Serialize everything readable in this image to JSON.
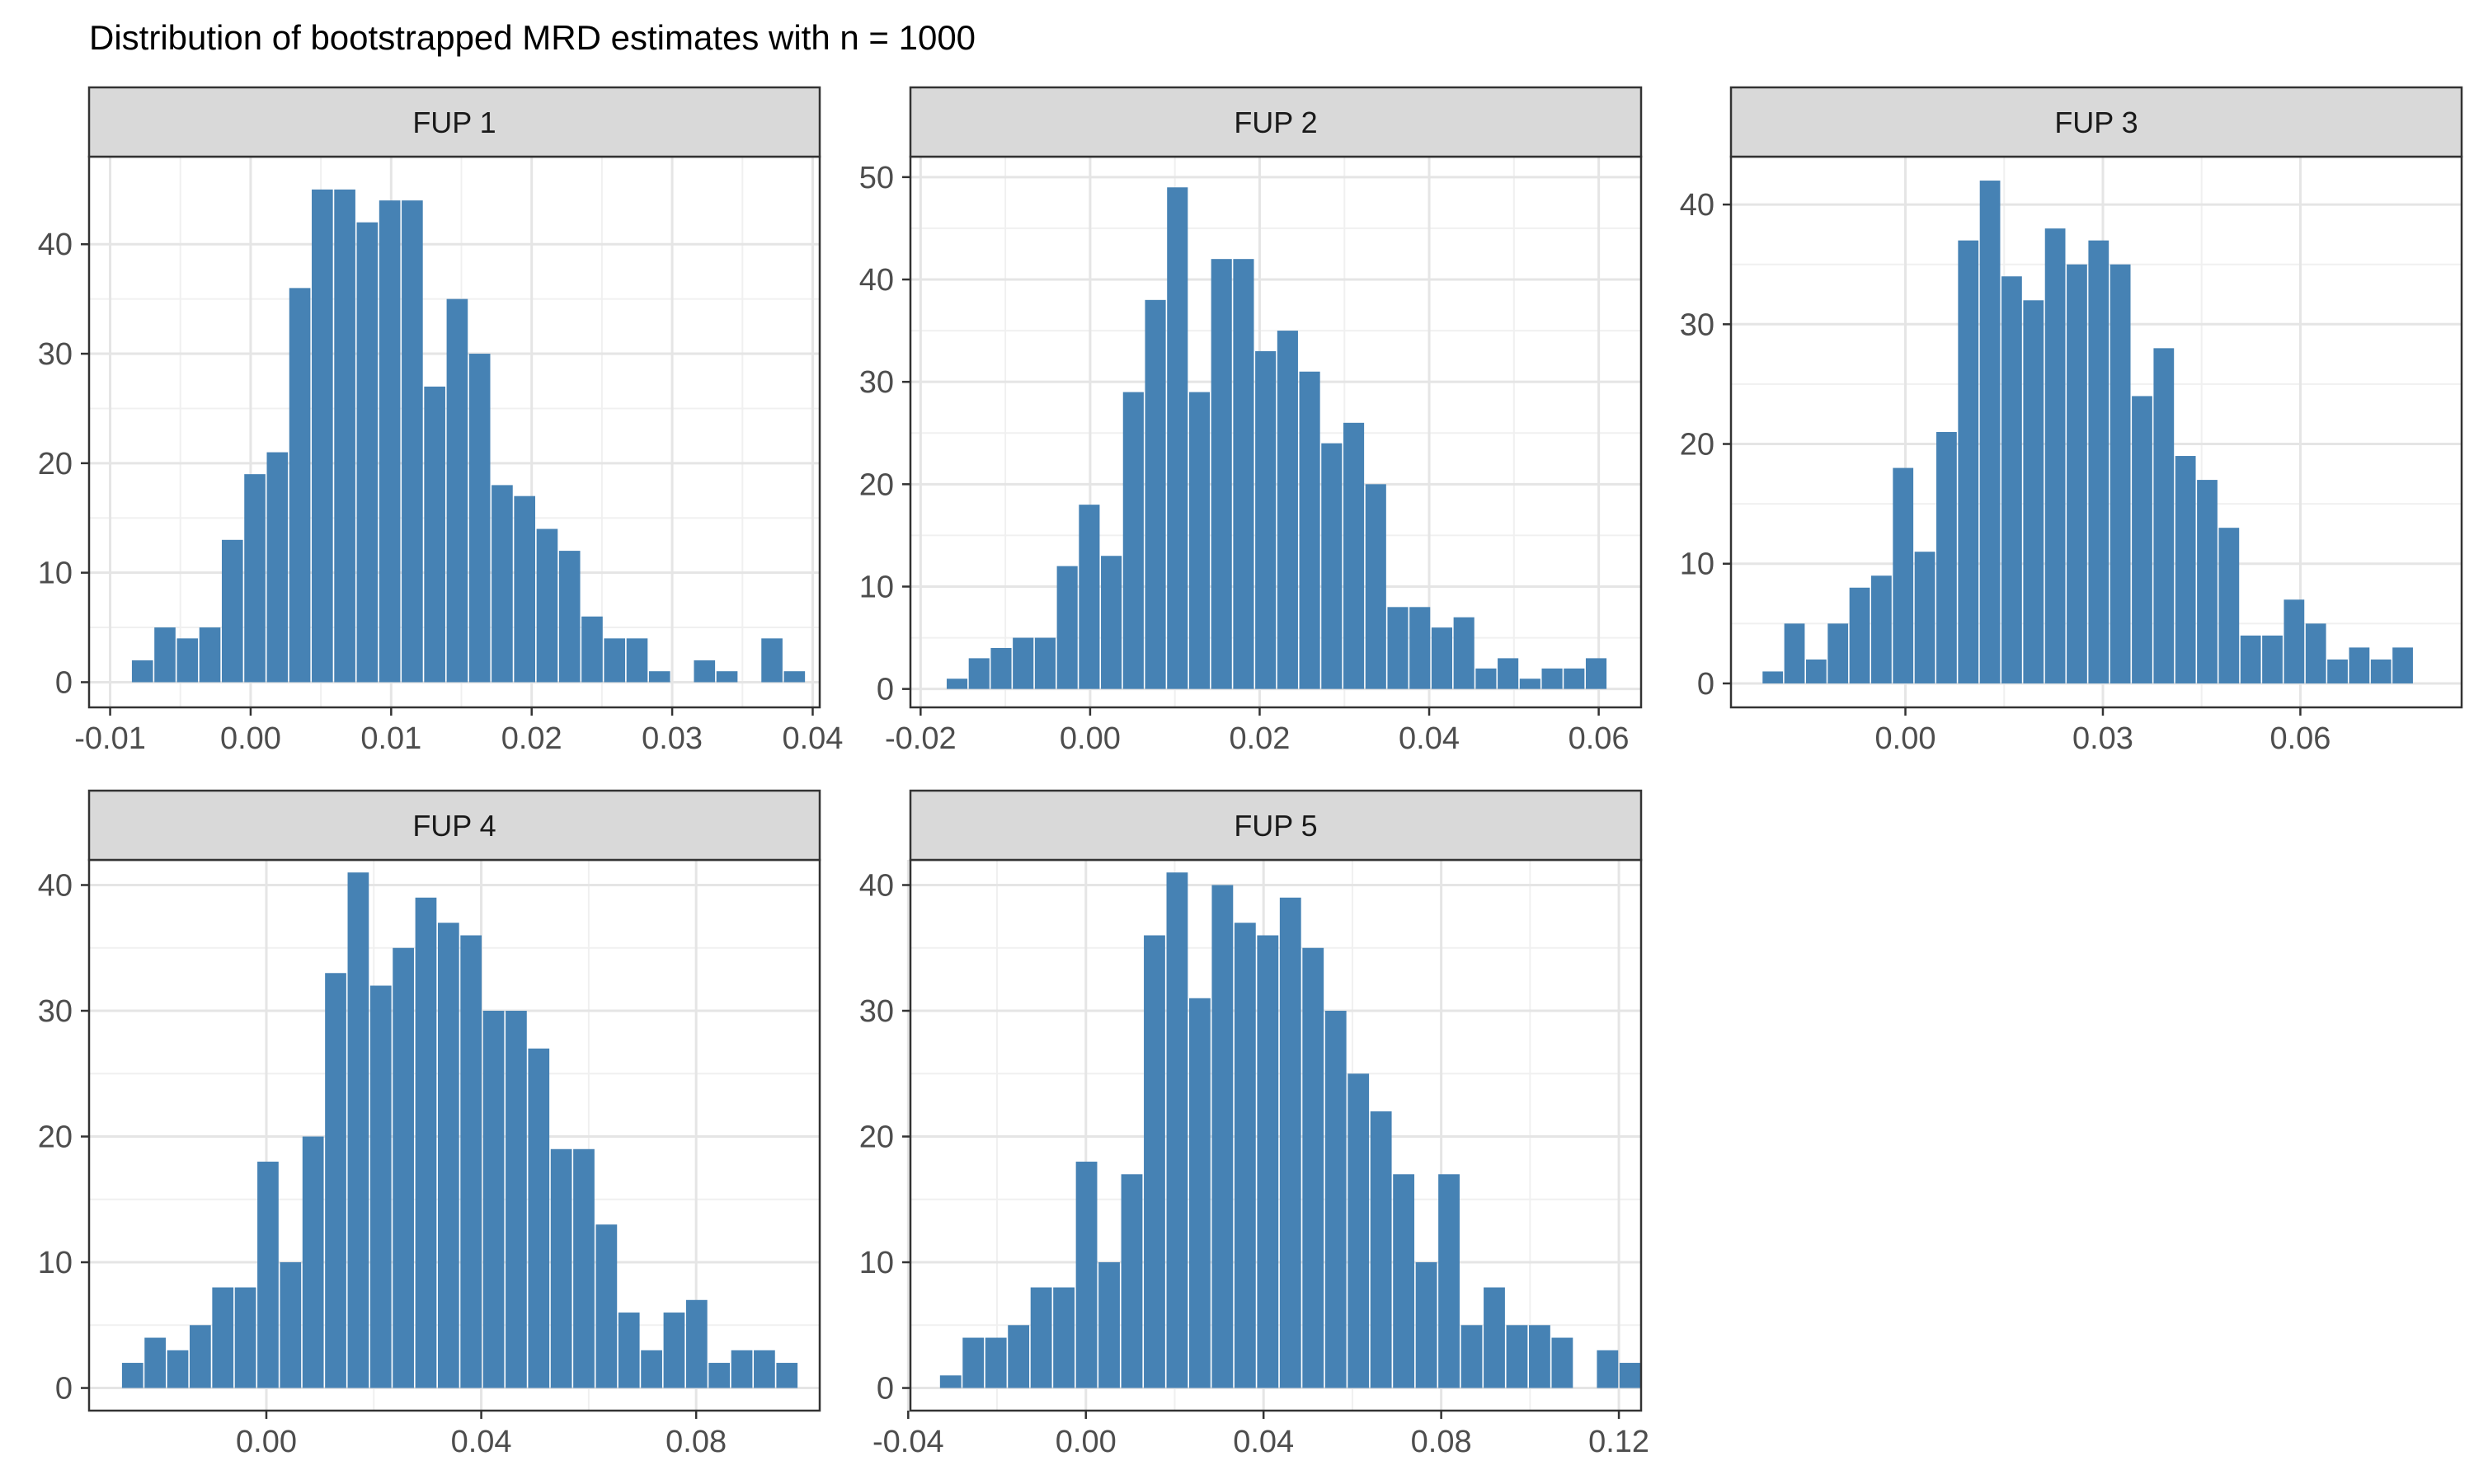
{
  "chart_data": {
    "type": "bar",
    "title": "Distribution of bootstrapped MRD estimates with n = 1000",
    "bar_color": "#4682b4",
    "panels": [
      {
        "strip_label": "FUP 1",
        "bin_start": -0.0085,
        "bin_width": 0.0016,
        "counts": [
          2,
          5,
          4,
          5,
          13,
          19,
          21,
          36,
          45,
          45,
          42,
          44,
          44,
          27,
          35,
          30,
          18,
          17,
          14,
          12,
          6,
          4,
          4,
          1,
          0,
          2,
          1,
          0,
          4,
          1
        ],
        "xlim": [
          -0.0115,
          0.0405
        ],
        "ylim": [
          -2.3,
          48
        ],
        "xticks": [
          -0.01,
          0.0,
          0.01,
          0.02,
          0.03,
          0.04
        ],
        "xtick_labels": [
          "-0.01",
          "0.00",
          "0.01",
          "0.02",
          "0.03",
          "0.04"
        ],
        "yticks": [
          0,
          10,
          20,
          30,
          40
        ],
        "ytick_labels": [
          "0",
          "10",
          "20",
          "30",
          "40"
        ]
      },
      {
        "strip_label": "FUP 2",
        "bin_start": -0.017,
        "bin_width": 0.0026,
        "counts": [
          1,
          3,
          4,
          5,
          5,
          12,
          18,
          13,
          29,
          38,
          49,
          29,
          42,
          42,
          33,
          35,
          31,
          24,
          26,
          20,
          8,
          8,
          6,
          7,
          2,
          3,
          1,
          2,
          2,
          3
        ],
        "xlim": [
          -0.0212,
          0.065
        ],
        "ylim": [
          -1.8,
          52
        ],
        "xticks": [
          -0.02,
          0.0,
          0.02,
          0.04,
          0.06
        ],
        "xtick_labels": [
          "-0.02",
          "0.00",
          "0.02",
          "0.04",
          "0.06"
        ],
        "yticks": [
          0,
          10,
          20,
          30,
          40,
          50
        ],
        "ytick_labels": [
          "0",
          "10",
          "20",
          "30",
          "40",
          "50"
        ]
      },
      {
        "strip_label": "FUP 3",
        "bin_start": -0.0218,
        "bin_width": 0.0033,
        "counts": [
          1,
          5,
          2,
          5,
          8,
          9,
          18,
          11,
          21,
          37,
          42,
          34,
          32,
          38,
          35,
          37,
          35,
          24,
          28,
          19,
          17,
          13,
          4,
          4,
          7,
          5,
          2,
          3,
          2,
          3
        ],
        "xlim": [
          -0.0265,
          0.0845
        ],
        "ylim": [
          -2.0,
          44
        ],
        "xticks": [
          0.0,
          0.03,
          0.06
        ],
        "xtick_labels": [
          "0.00",
          "0.03",
          "0.06"
        ],
        "yticks": [
          0,
          10,
          20,
          30,
          40
        ],
        "ytick_labels": [
          "0",
          "10",
          "20",
          "30",
          "40"
        ]
      },
      {
        "strip_label": "FUP 4",
        "bin_start": -0.027,
        "bin_width": 0.0042,
        "counts": [
          2,
          4,
          3,
          5,
          8,
          8,
          18,
          10,
          20,
          33,
          41,
          32,
          35,
          39,
          37,
          36,
          30,
          30,
          27,
          19,
          19,
          13,
          6,
          3,
          6,
          7,
          2,
          3,
          3,
          2
        ],
        "xlim": [
          -0.033,
          0.103
        ],
        "ylim": [
          -1.8,
          42
        ],
        "xticks": [
          0.0,
          0.04,
          0.08
        ],
        "xtick_labels": [
          "0.00",
          "0.04",
          "0.08"
        ],
        "yticks": [
          0,
          10,
          20,
          30,
          40
        ],
        "ytick_labels": [
          "0",
          "10",
          "20",
          "30",
          "40"
        ]
      },
      {
        "strip_label": "FUP 5",
        "bin_start": -0.033,
        "bin_width": 0.0051,
        "counts": [
          1,
          4,
          4,
          5,
          8,
          8,
          18,
          10,
          17,
          36,
          41,
          31,
          40,
          37,
          36,
          39,
          35,
          30,
          25,
          22,
          17,
          10,
          17,
          5,
          8,
          5,
          5,
          4,
          0,
          3,
          2
        ],
        "xlim": [
          -0.0395,
          0.125
        ],
        "ylim": [
          -1.8,
          42
        ],
        "xticks": [
          -0.04,
          0.0,
          0.04,
          0.08,
          0.12
        ],
        "xtick_labels": [
          "-0.04",
          "0.00",
          "0.04",
          "0.08",
          "0.12"
        ],
        "yticks": [
          0,
          10,
          20,
          30,
          40
        ],
        "ytick_labels": [
          "0",
          "10",
          "20",
          "30",
          "40"
        ]
      }
    ]
  }
}
